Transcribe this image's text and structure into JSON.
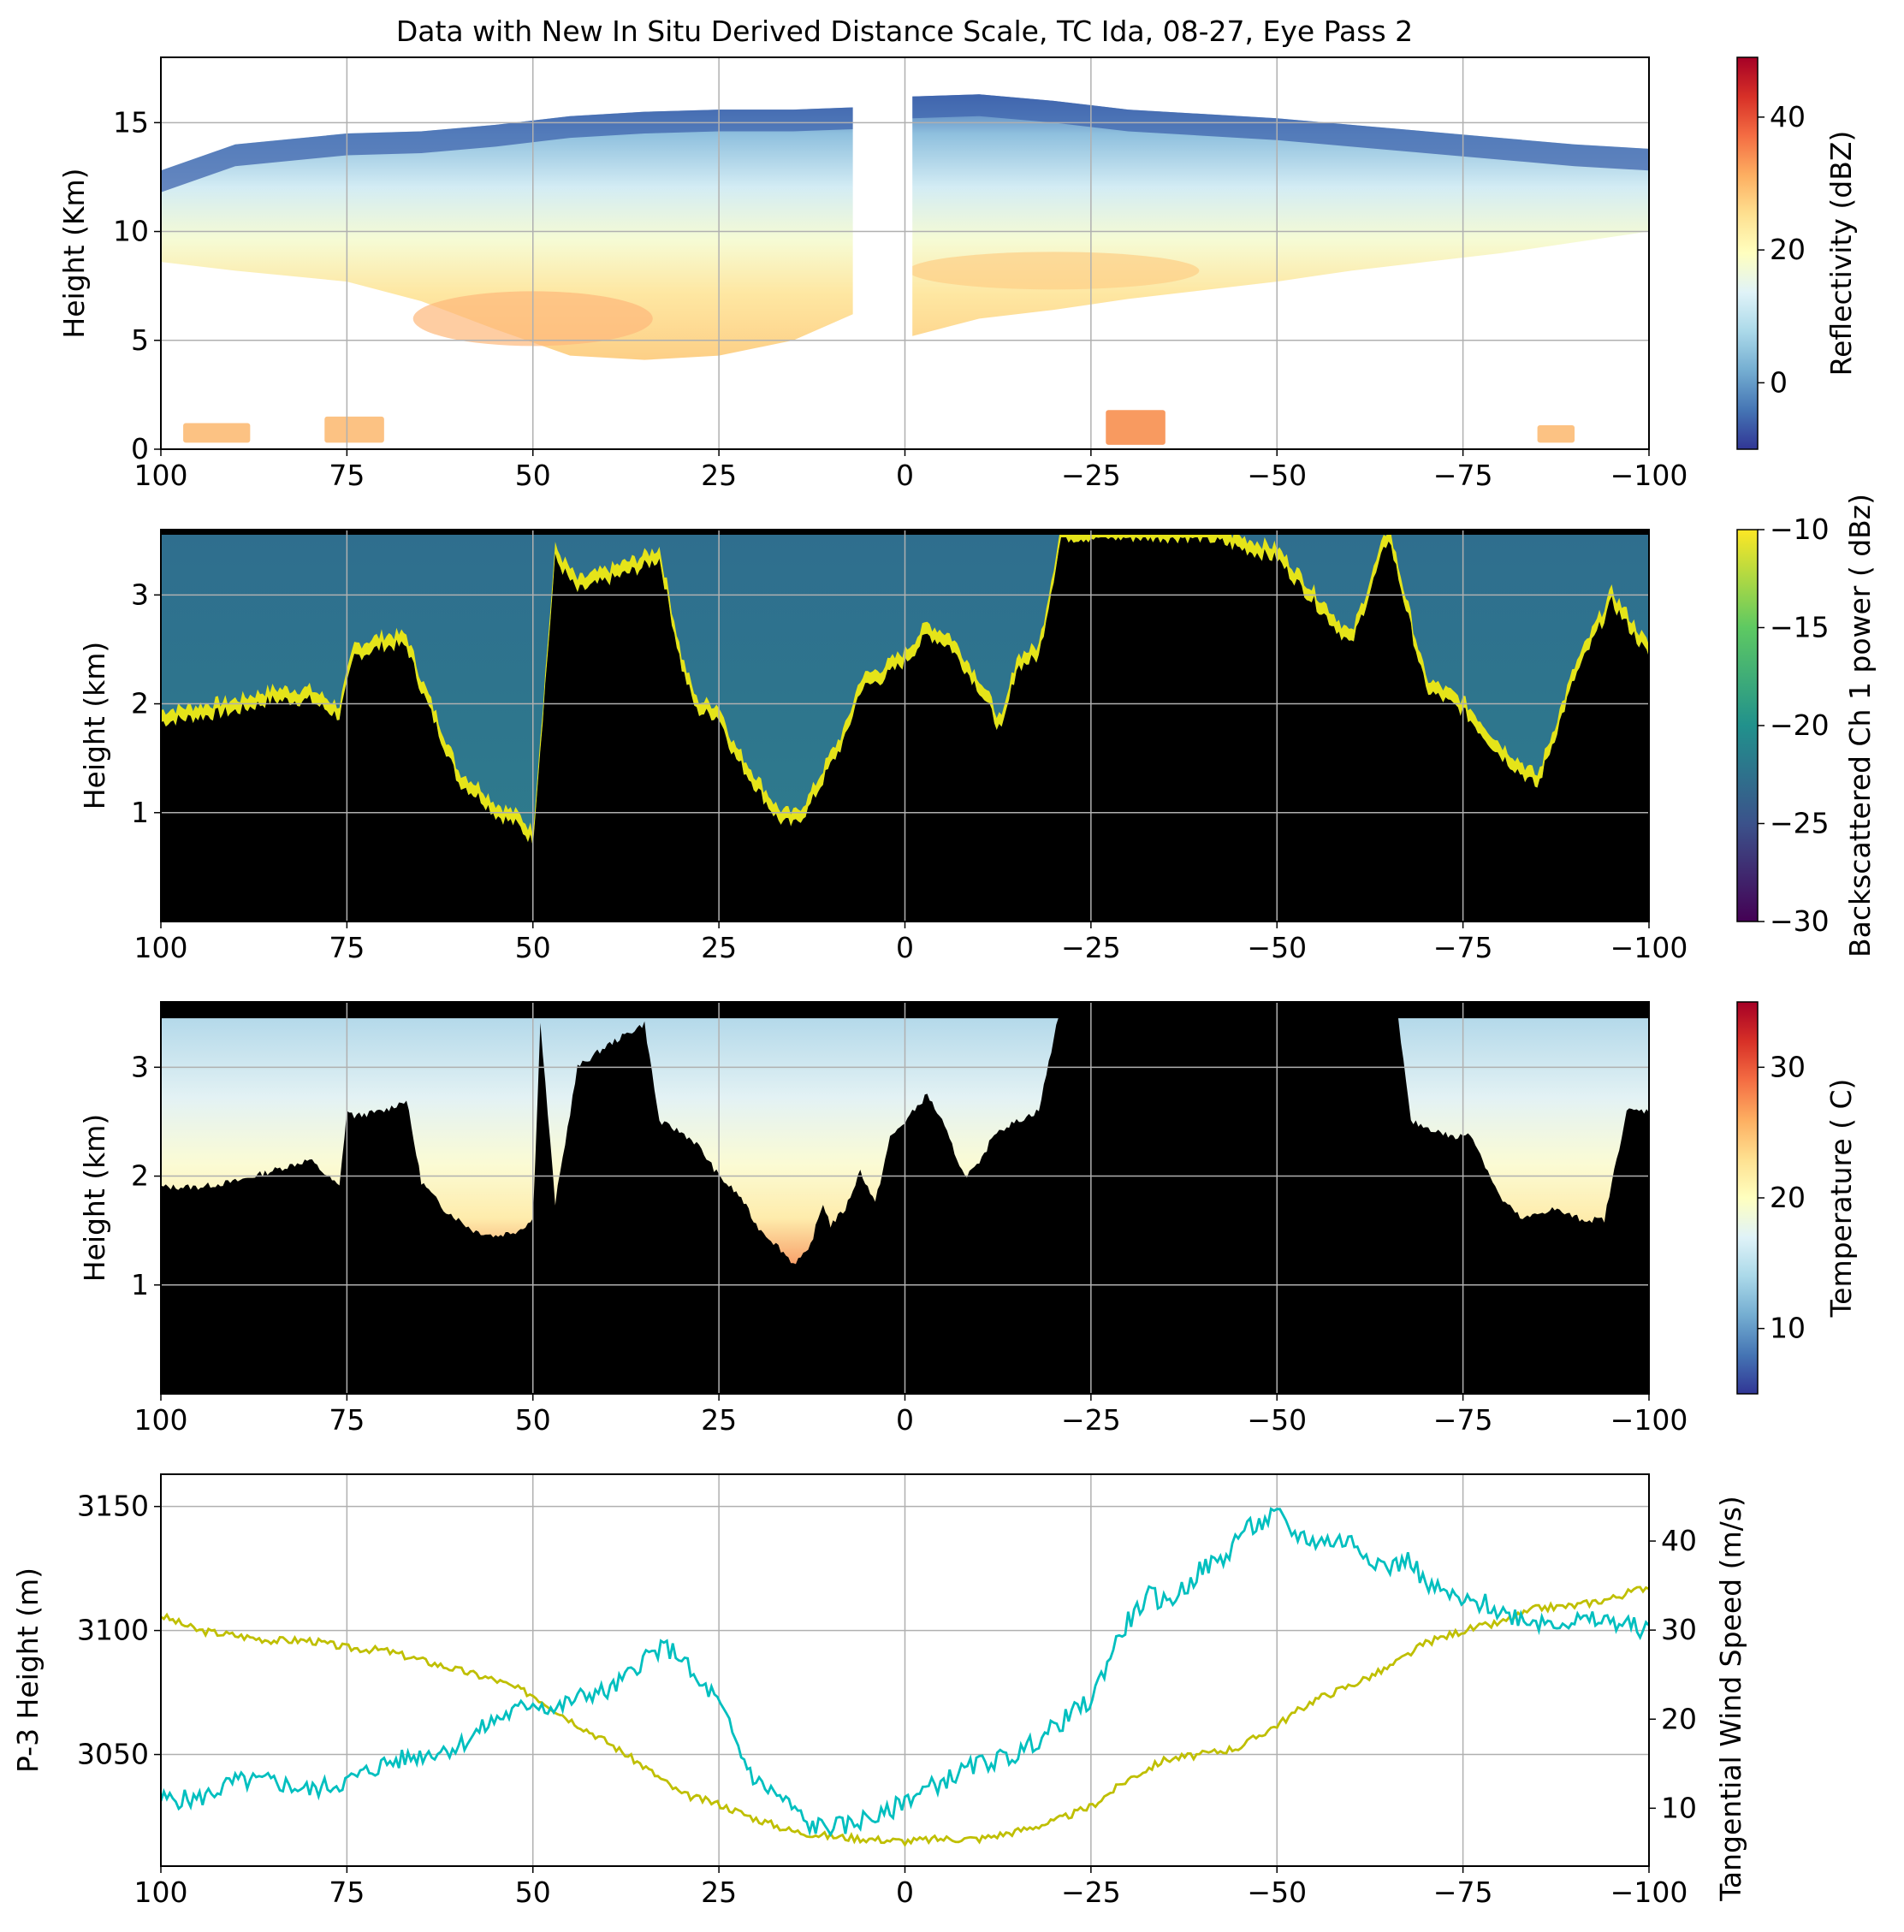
{
  "figure_title": "Data with New In Situ Derived Distance Scale, TC Ida, 08-27, Eye Pass 2",
  "colors": {
    "p3_height": "#bfbf00",
    "wind": "#00bfbf",
    "grid": "#b0b0b0",
    "terrain": "#000000"
  },
  "chart_data": [
    {
      "type": "heatmap",
      "title": "Data with New In Situ Derived Distance Scale, TC Ida, 08-27, Eye Pass 2",
      "xlabel": "",
      "ylabel": "Height (Km)",
      "xlim": [
        100,
        -100
      ],
      "ylim": [
        0,
        18
      ],
      "xticks": [
        100,
        75,
        50,
        25,
        0,
        -25,
        -50,
        -75,
        -100
      ],
      "xtick_labels": [
        "100",
        "75",
        "50",
        "25",
        "0",
        "−25",
        "−50",
        "−75",
        "−100"
      ],
      "yticks": [
        0,
        5,
        10,
        15
      ],
      "ytick_labels": [
        "0",
        "5",
        "10",
        "15"
      ],
      "grid": true,
      "colormap": "RdYlBu_r",
      "colorbar": {
        "label": "Reflectivity (dBZ)",
        "range": [
          -10,
          49
        ],
        "ticks": [
          0,
          20,
          40
        ],
        "tick_labels": [
          "0",
          "20",
          "40"
        ]
      },
      "data_gap_x": [
        7,
        -1
      ],
      "cloud_layer": {
        "x": [
          100,
          90,
          75,
          65,
          55,
          45,
          35,
          25,
          15,
          7,
          -1,
          -10,
          -20,
          -30,
          -40,
          -50,
          -60,
          -70,
          -80,
          -90,
          -100
        ],
        "top_km": [
          12.8,
          14.0,
          14.5,
          14.6,
          14.9,
          15.3,
          15.5,
          15.6,
          15.6,
          15.7,
          16.2,
          16.3,
          16.0,
          15.6,
          15.4,
          15.2,
          14.9,
          14.6,
          14.3,
          14.0,
          13.8
        ],
        "base_km": [
          8.6,
          8.2,
          7.7,
          6.8,
          5.5,
          4.3,
          4.1,
          4.3,
          5.0,
          6.2,
          5.2,
          6.0,
          6.4,
          6.9,
          7.3,
          7.7,
          8.2,
          8.6,
          9.0,
          9.5,
          10.0
        ]
      },
      "precip_blobs": [
        {
          "x": [
            97,
            88
          ],
          "height_km": [
            0.3,
            1.2
          ],
          "dbz": 30
        },
        {
          "x": [
            78,
            70
          ],
          "height_km": [
            0.3,
            1.5
          ],
          "dbz": 30
        },
        {
          "x": [
            -27,
            -35
          ],
          "height_km": [
            0.2,
            1.8
          ],
          "dbz": 33
        },
        {
          "x": [
            -85,
            -90
          ],
          "height_km": [
            0.3,
            1.1
          ],
          "dbz": 30
        }
      ]
    },
    {
      "type": "heatmap",
      "xlabel": "",
      "ylabel": "Height (km)",
      "xlim": [
        100,
        -100
      ],
      "ylim": [
        0,
        3.6
      ],
      "xticks": [
        100,
        75,
        50,
        25,
        0,
        -25,
        -50,
        -75,
        -100
      ],
      "xtick_labels": [
        "100",
        "75",
        "50",
        "25",
        "0",
        "−25",
        "−50",
        "−75",
        "−100"
      ],
      "yticks": [
        1,
        2,
        3
      ],
      "ytick_labels": [
        "1",
        "2",
        "3"
      ],
      "grid": true,
      "colormap": "viridis",
      "colorbar": {
        "label": "Backscattered Ch 1 power ( dBz)",
        "range": [
          -30,
          -10
        ],
        "ticks": [
          -30,
          -25,
          -20,
          -15,
          -10
        ],
        "tick_labels": [
          "−30",
          "−25",
          "−20",
          "−15",
          "−10"
        ]
      },
      "cloud_top_height_km": {
        "x": [
          100,
          95,
          90,
          85,
          80,
          76,
          74,
          70,
          67,
          65,
          62,
          60,
          57,
          55,
          52,
          50,
          47,
          44,
          40,
          36,
          33,
          30,
          28,
          25,
          23,
          20,
          17,
          15,
          13,
          10,
          8,
          6,
          3,
          0,
          -3,
          -6,
          -10,
          -13,
          -15,
          -18,
          -21,
          -25,
          -30,
          -40,
          -50,
          -55,
          -60,
          -65,
          -70,
          -75,
          -80,
          -85,
          -90,
          -95,
          -100
        ],
        "values": [
          1.9,
          1.95,
          2.0,
          2.1,
          2.1,
          1.95,
          2.5,
          2.6,
          2.6,
          2.2,
          1.7,
          1.35,
          1.2,
          1.05,
          0.95,
          0.8,
          3.4,
          3.1,
          3.2,
          3.3,
          3.4,
          2.4,
          2.0,
          1.95,
          1.6,
          1.3,
          1.0,
          0.95,
          1.1,
          1.5,
          1.75,
          2.2,
          2.3,
          2.45,
          2.7,
          2.6,
          2.2,
          1.8,
          2.4,
          2.5,
          3.6,
          3.6,
          3.6,
          3.6,
          3.4,
          3.0,
          2.6,
          3.6,
          2.2,
          2.0,
          1.6,
          1.3,
          2.3,
          3.0,
          2.5
        ]
      }
    },
    {
      "type": "heatmap",
      "xlabel": "",
      "ylabel": "Height (km)",
      "xlim": [
        100,
        -100
      ],
      "ylim": [
        0,
        3.6
      ],
      "xticks": [
        100,
        75,
        50,
        25,
        0,
        -25,
        -50,
        -75,
        -100
      ],
      "xtick_labels": [
        "100",
        "75",
        "50",
        "25",
        "0",
        "−25",
        "−50",
        "−75",
        "−100"
      ],
      "yticks": [
        1,
        2,
        3
      ],
      "ytick_labels": [
        "1",
        "2",
        "3"
      ],
      "grid": true,
      "colormap": "RdYlBu_r",
      "colorbar": {
        "label": "Temperature ( C)",
        "range": [
          5,
          35
        ],
        "ticks": [
          10,
          20,
          30
        ],
        "tick_labels": [
          "10",
          "20",
          "30"
        ]
      },
      "data_top_km": 3.45,
      "temperature_at_surface_C": 27,
      "temperature_at_top_C": 14,
      "terrain_height_km": {
        "x": [
          100,
          95,
          90,
          85,
          80,
          76,
          75,
          74,
          70,
          67,
          65,
          62,
          58,
          55,
          52,
          50,
          49,
          47,
          44,
          40,
          35,
          33,
          30,
          28,
          25,
          22,
          20,
          17,
          15,
          13,
          11,
          10,
          8,
          6,
          4,
          2,
          0,
          -3,
          -5,
          -8,
          -10,
          -12,
          -15,
          -18,
          -21,
          -25,
          -30,
          -40,
          -50,
          -55,
          -60,
          -66,
          -68,
          -72,
          -74,
          -76,
          -80,
          -83,
          -87,
          -91,
          -94,
          -97,
          -100
        ],
        "values": [
          1.9,
          1.9,
          1.95,
          2.05,
          2.15,
          1.9,
          2.6,
          2.55,
          2.6,
          2.7,
          1.95,
          1.7,
          1.5,
          1.45,
          1.5,
          1.6,
          3.4,
          1.75,
          3.0,
          3.2,
          3.4,
          2.5,
          2.4,
          2.3,
          2.0,
          1.8,
          1.55,
          1.35,
          1.2,
          1.3,
          1.75,
          1.55,
          1.7,
          2.05,
          1.75,
          2.35,
          2.5,
          2.75,
          2.5,
          2.0,
          2.1,
          2.4,
          2.5,
          2.6,
          3.6,
          3.6,
          3.6,
          3.6,
          3.6,
          3.6,
          3.6,
          3.6,
          2.5,
          2.4,
          2.35,
          2.4,
          1.8,
          1.6,
          1.7,
          1.6,
          1.6,
          2.6,
          2.6
        ]
      }
    },
    {
      "type": "line",
      "xlabel": "",
      "ylabel": "P-3 Height (m)",
      "y2label": "Tangential Wind Speed (m/s)",
      "xlim": [
        100,
        -100
      ],
      "ylim": [
        3005,
        3163
      ],
      "y2lim": [
        3.5,
        47.5
      ],
      "xticks": [
        100,
        75,
        50,
        25,
        0,
        -25,
        -50,
        -75,
        -100
      ],
      "xtick_labels": [
        "100",
        "75",
        "50",
        "25",
        "0",
        "−25",
        "−50",
        "−75",
        "−100"
      ],
      "yticks": [
        3050,
        3100,
        3150
      ],
      "ytick_labels": [
        "3050",
        "3100",
        "3150"
      ],
      "y2ticks": [
        10,
        20,
        30,
        40
      ],
      "y2tick_labels": [
        "10",
        "20",
        "30",
        "40"
      ],
      "grid": true,
      "series": [
        {
          "axis": "left",
          "color": "#bfbf00",
          "x": [
            100,
            95,
            90,
            85,
            80,
            75,
            70,
            65,
            60,
            55,
            50,
            45,
            40,
            35,
            30,
            25,
            20,
            15,
            10,
            5,
            0,
            -5,
            -10,
            -15,
            -20,
            -25,
            -30,
            -35,
            -40,
            -45,
            -50,
            -55,
            -60,
            -65,
            -70,
            -75,
            -80,
            -85,
            -90,
            -95,
            -100
          ],
          "values": [
            3106,
            3100,
            3098,
            3096,
            3096,
            3093,
            3092,
            3088,
            3084,
            3080,
            3074,
            3064,
            3055,
            3045,
            3034,
            3030,
            3024,
            3019,
            3017,
            3016,
            3015,
            3016,
            3016,
            3019,
            3023,
            3029,
            3040,
            3048,
            3050,
            3053,
            3062,
            3072,
            3078,
            3085,
            3095,
            3100,
            3103,
            3109,
            3110,
            3113,
            3118
          ]
        },
        {
          "axis": "right",
          "color": "#00bfbf",
          "x": [
            100,
            95,
            90,
            85,
            80,
            75,
            70,
            65,
            60,
            55,
            52,
            50,
            47,
            45,
            42,
            40,
            37,
            35,
            32,
            30,
            28,
            26,
            24,
            22,
            20,
            18,
            15,
            13,
            10,
            8,
            5,
            3,
            0,
            -5,
            -10,
            -15,
            -20,
            -23,
            -25,
            -28,
            -30,
            -33,
            -35,
            -38,
            -40,
            -43,
            -45,
            -48,
            -50,
            -52,
            -55,
            -58,
            -60,
            -63,
            -65,
            -68,
            -70,
            -73,
            -75,
            -78,
            -80,
            -85,
            -90,
            -95,
            -100
          ],
          "values": [
            11,
            11,
            13,
            13,
            12,
            13,
            15,
            16,
            17,
            20,
            21,
            22,
            21,
            22,
            23,
            23,
            25,
            27,
            28,
            27,
            24,
            23,
            20,
            16,
            13,
            12,
            10,
            8,
            8,
            8,
            9,
            9,
            11,
            13,
            15,
            16,
            19,
            21,
            22,
            28,
            31,
            34,
            33,
            35,
            37,
            38,
            41,
            42,
            43,
            41,
            40,
            40,
            40,
            38,
            37,
            38,
            35,
            34,
            33,
            33,
            32,
            31,
            31,
            31,
            30
          ]
        }
      ]
    }
  ]
}
